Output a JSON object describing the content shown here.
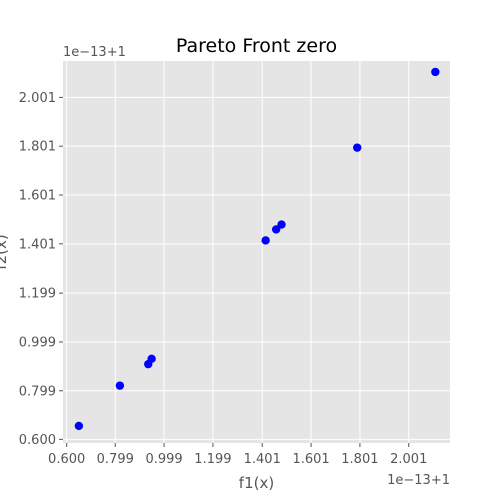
{
  "chart_data": {
    "type": "scatter",
    "title": "Pareto Front zero",
    "xlabel": "f1(x)",
    "ylabel": "f2(x)",
    "x_offset_label": "1e−13+1",
    "y_offset_label": "1e−13+1",
    "xlim": [
      0.585,
      2.17
    ],
    "ylim": [
      0.585,
      2.15
    ],
    "xticks": [
      0.6,
      0.799,
      0.999,
      1.199,
      1.401,
      1.601,
      1.801,
      2.001
    ],
    "xtick_labels": [
      "0.600",
      "0.799",
      "0.999",
      "1.199",
      "1.401",
      "1.601",
      "1.801",
      "2.001"
    ],
    "yticks": [
      0.6,
      0.799,
      0.999,
      1.199,
      1.401,
      1.601,
      1.801,
      2.001
    ],
    "ytick_labels": [
      "0.600",
      "0.799",
      "0.999",
      "1.199",
      "1.401",
      "1.601",
      "1.801",
      "2.001"
    ],
    "grid": true,
    "style": "ggplot",
    "colors": {
      "background": "#E5E5E5",
      "grid": "#FFFFFF",
      "marker": "#0000FF"
    },
    "series": [
      {
        "x": [
          0.65,
          0.818,
          0.934,
          0.948,
          1.415,
          1.458,
          1.48,
          1.79,
          2.11
        ],
        "y": [
          0.655,
          0.82,
          0.908,
          0.93,
          1.415,
          1.46,
          1.48,
          1.795,
          2.105
        ]
      }
    ]
  }
}
